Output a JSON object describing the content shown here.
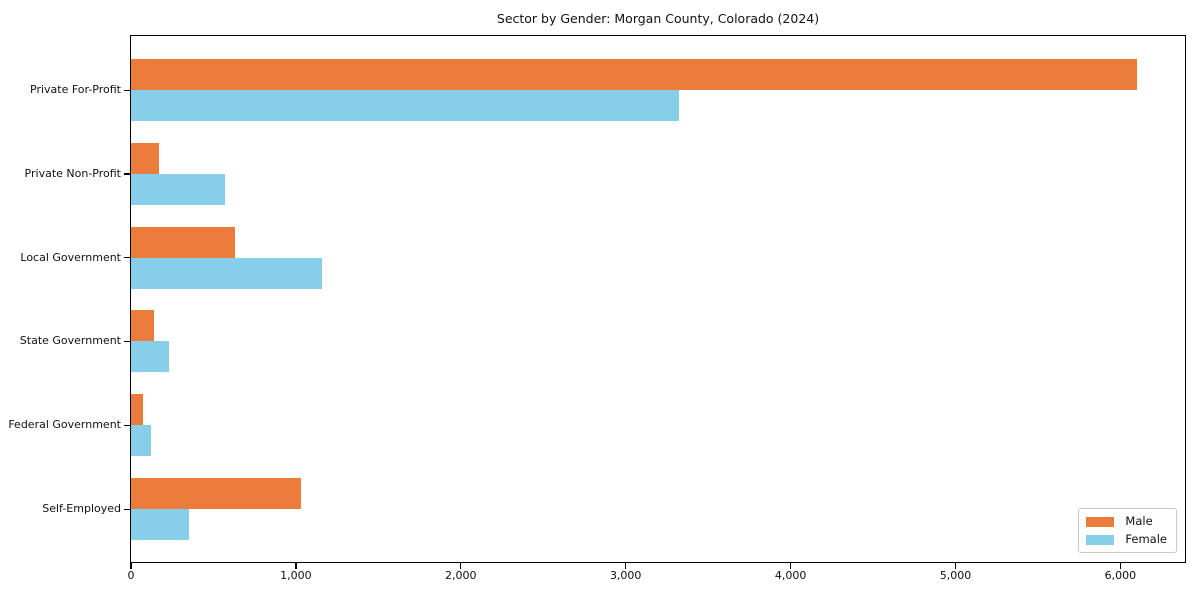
{
  "title": "Sector by Gender: Morgan County, Colorado (2024)",
  "chart_data": {
    "type": "bar",
    "orientation": "horizontal",
    "title": "Sector by Gender: Morgan County, Colorado (2024)",
    "categories": [
      "Private For-Profit",
      "Private Non-Profit",
      "Local Government",
      "State Government",
      "Federal Government",
      "Self-Employed"
    ],
    "series": [
      {
        "name": "Male",
        "color": "#ec7c3c",
        "values": [
          6100,
          170,
          630,
          140,
          75,
          1030
        ]
      },
      {
        "name": "Female",
        "color": "#87ceeb",
        "values": [
          3320,
          570,
          1160,
          230,
          120,
          350
        ]
      }
    ],
    "xlabel": "",
    "ylabel": "",
    "xlim": [
      0,
      6404
    ],
    "xticks": [
      0,
      1000,
      2000,
      3000,
      4000,
      5000,
      6000
    ],
    "xtick_labels": [
      "0",
      "1,000",
      "2,000",
      "3,000",
      "4,000",
      "5,000",
      "6,000"
    ],
    "legend": {
      "position": "lower right"
    },
    "grid": false,
    "background": "#ffffff"
  }
}
